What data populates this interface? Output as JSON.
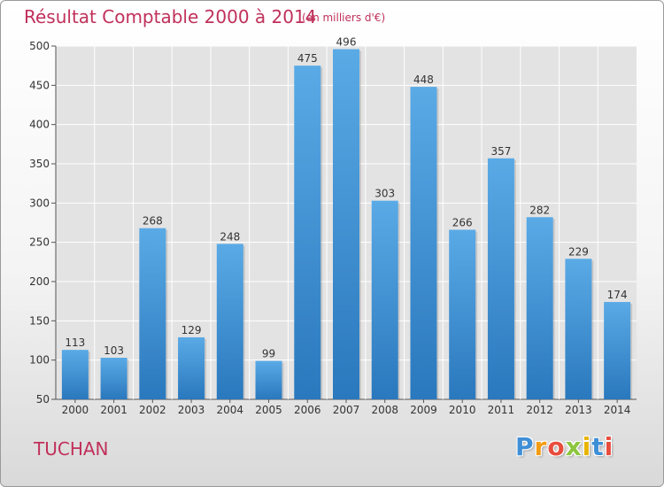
{
  "header": {
    "title": "Résultat Comptable 2000 à 2014",
    "subtitle": "(en milliers d'€)"
  },
  "footer": {
    "commune": "TUCHAN",
    "logo_text": "Proxiti",
    "logo_colors": [
      "#3f8fd6",
      "#f39c12",
      "#e84c3d",
      "#8cc63f",
      "#e8b400",
      "#3f8fd6",
      "#e84c3d"
    ]
  },
  "colors": {
    "title": "#c0305a",
    "bar_top": "#5aaae6",
    "bar_bottom": "#2a78bd",
    "grid": "#ffffff",
    "plot_bg": "#e3e3e3"
  },
  "chart_data": {
    "type": "bar",
    "title": "Résultat Comptable 2000 à 2014",
    "subtitle": "(en milliers d'€)",
    "xlabel": "",
    "ylabel": "",
    "categories": [
      "2000",
      "2001",
      "2002",
      "2003",
      "2004",
      "2005",
      "2006",
      "2007",
      "2008",
      "2009",
      "2010",
      "2011",
      "2012",
      "2013",
      "2014"
    ],
    "values": [
      113,
      103,
      268,
      129,
      248,
      99,
      475,
      496,
      303,
      448,
      266,
      357,
      282,
      229,
      174
    ],
    "ylim": [
      50,
      500
    ],
    "yticks": [
      50,
      100,
      150,
      200,
      250,
      300,
      350,
      400,
      450,
      500
    ],
    "grid": true
  }
}
